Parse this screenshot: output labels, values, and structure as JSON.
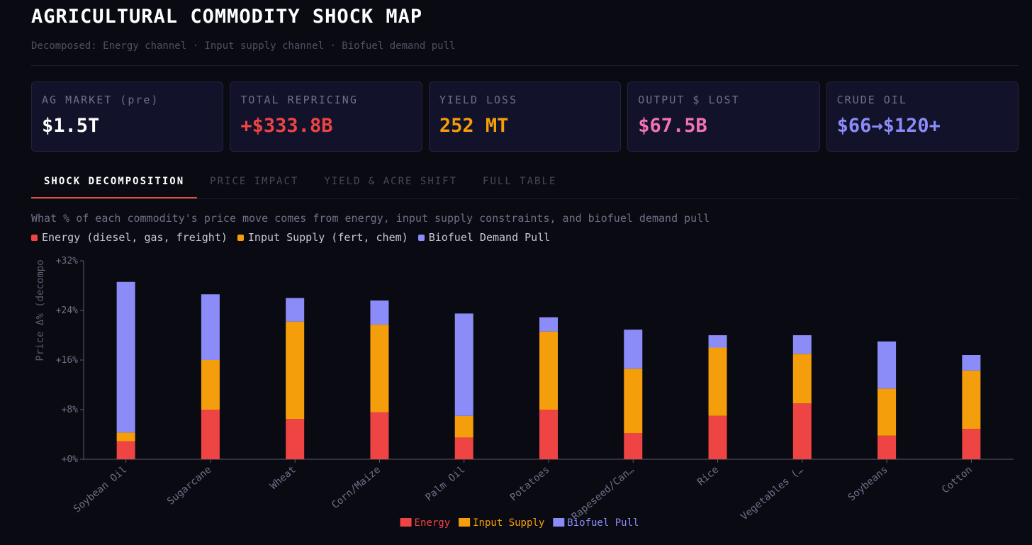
{
  "header": {
    "title": "AGRICULTURAL COMMODITY SHOCK MAP",
    "subtitle": "Decomposed: Energy channel · Input supply channel · Biofuel demand pull"
  },
  "cards": [
    {
      "label": "AG MARKET (pre)",
      "value": "$1.5T",
      "color": "#ffffff"
    },
    {
      "label": "TOTAL REPRICING",
      "value": "+$333.8B",
      "color": "#ef4444"
    },
    {
      "label": "YIELD LOSS",
      "value": "252 MT",
      "color": "#f59e0b"
    },
    {
      "label": "OUTPUT $ LOST",
      "value": "$67.5B",
      "color": "#f472b6"
    },
    {
      "label": "CRUDE OIL",
      "value": "$66→$120+",
      "color": "#8b8cf8"
    }
  ],
  "tabs": [
    {
      "label": "SHOCK DECOMPOSITION",
      "active": true
    },
    {
      "label": "PRICE IMPACT",
      "active": false
    },
    {
      "label": "YIELD & ACRE SHIFT",
      "active": false
    },
    {
      "label": "FULL TABLE",
      "active": false
    }
  ],
  "description": "What % of each commodity's price move comes from energy, input supply constraints, and biofuel demand pull",
  "legend_top": [
    {
      "label": "Energy (diesel, gas, freight)",
      "color": "#ef4444"
    },
    {
      "label": "Input Supply (fert, chem)",
      "color": "#f59e0b"
    },
    {
      "label": "Biofuel Demand Pull",
      "color": "#8b8cf8"
    }
  ],
  "chart_data": {
    "type": "bar",
    "stacked": true,
    "categories": [
      "Soybean Oil",
      "Sugarcane",
      "Wheat",
      "Corn/Maize",
      "Palm Oil",
      "Potatoes",
      "Rapeseed/Can…",
      "Rice",
      "Vegetables (…",
      "Soybeans",
      "Cotton"
    ],
    "series": [
      {
        "name": "Energy",
        "color": "#ef4444",
        "values": [
          2.9,
          8.0,
          6.5,
          7.6,
          3.5,
          8.0,
          4.2,
          7.0,
          9.0,
          3.8,
          4.9
        ]
      },
      {
        "name": "Input Supply",
        "color": "#f59e0b",
        "values": [
          1.4,
          8.0,
          15.7,
          14.1,
          3.5,
          12.6,
          10.4,
          11.0,
          8.0,
          7.6,
          9.4
        ]
      },
      {
        "name": "Biofuel Pull",
        "color": "#8b8cf8",
        "values": [
          24.3,
          10.6,
          3.8,
          3.9,
          16.5,
          2.3,
          6.3,
          2.0,
          3.0,
          7.6,
          2.5
        ]
      }
    ],
    "ylabel": "Price Δ% (decompo",
    "yticks": [
      "+0%",
      "+8%",
      "+16%",
      "+24%",
      "+32%"
    ],
    "ytick_values": [
      0,
      8,
      16,
      24,
      32
    ],
    "ylim": [
      0,
      32
    ],
    "legend_position": "bottom-center",
    "grid": false
  }
}
